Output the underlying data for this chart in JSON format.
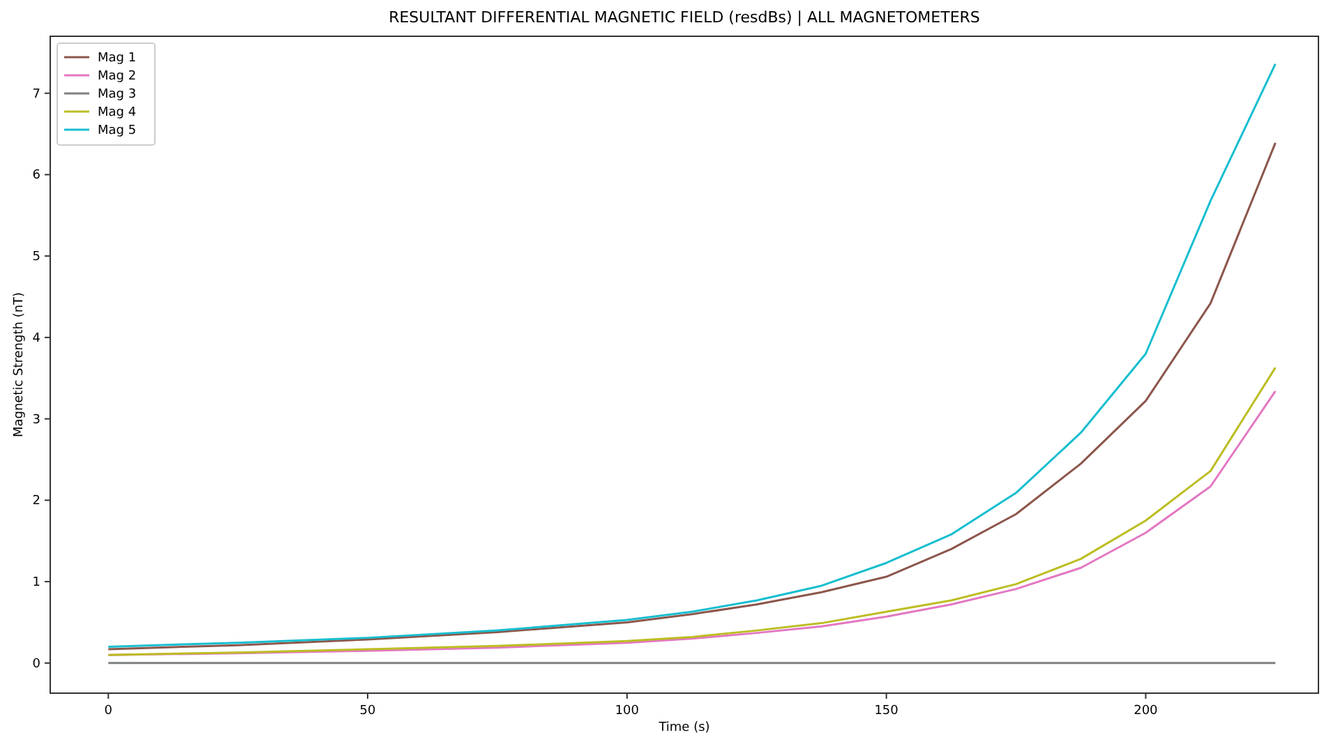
{
  "chart_data": {
    "type": "line",
    "title": "RESULTANT DIFFERENTIAL MAGNETIC FIELD (resdBs) | ALL MAGNETOMETERS",
    "xlabel": "Time (s)",
    "ylabel": "Magnetic Strength (nT)",
    "x": [
      0,
      25,
      50,
      75,
      100,
      112.5,
      125,
      137.5,
      150,
      162.5,
      175,
      187.5,
      200,
      212.5,
      225
    ],
    "series": [
      {
        "name": "Mag 1",
        "color": "#8c564b",
        "values": [
          0.17,
          0.22,
          0.29,
          0.38,
          0.5,
          0.6,
          0.72,
          0.87,
          1.06,
          1.4,
          1.83,
          2.45,
          3.22,
          4.42,
          6.39
        ]
      },
      {
        "name": "Mag 2",
        "color": "#e377c2",
        "values": [
          0.1,
          0.12,
          0.15,
          0.19,
          0.25,
          0.3,
          0.37,
          0.45,
          0.57,
          0.72,
          0.91,
          1.17,
          1.6,
          2.17,
          3.34
        ]
      },
      {
        "name": "Mag 3",
        "color": "#7f7f7f",
        "values": [
          0,
          0,
          0,
          0,
          0,
          0,
          0,
          0,
          0,
          0,
          0,
          0,
          0,
          0,
          0
        ]
      },
      {
        "name": "Mag 4",
        "color": "#bcbd22",
        "values": [
          0.1,
          0.13,
          0.17,
          0.21,
          0.27,
          0.32,
          0.4,
          0.49,
          0.63,
          0.77,
          0.97,
          1.28,
          1.75,
          2.36,
          3.63
        ]
      },
      {
        "name": "Mag 5",
        "color": "#17becf",
        "values": [
          0.2,
          0.25,
          0.31,
          0.4,
          0.53,
          0.63,
          0.77,
          0.95,
          1.23,
          1.58,
          2.09,
          2.83,
          3.8,
          5.68,
          7.36
        ]
      }
    ],
    "xlim": [
      -11.2,
      233.3
    ],
    "ylim": [
      -0.37,
      7.7
    ],
    "xticks": [
      0,
      50,
      100,
      150,
      200
    ],
    "yticks": [
      0,
      1,
      2,
      3,
      4,
      5,
      6,
      7
    ],
    "legend": "top left",
    "grid": false
  }
}
